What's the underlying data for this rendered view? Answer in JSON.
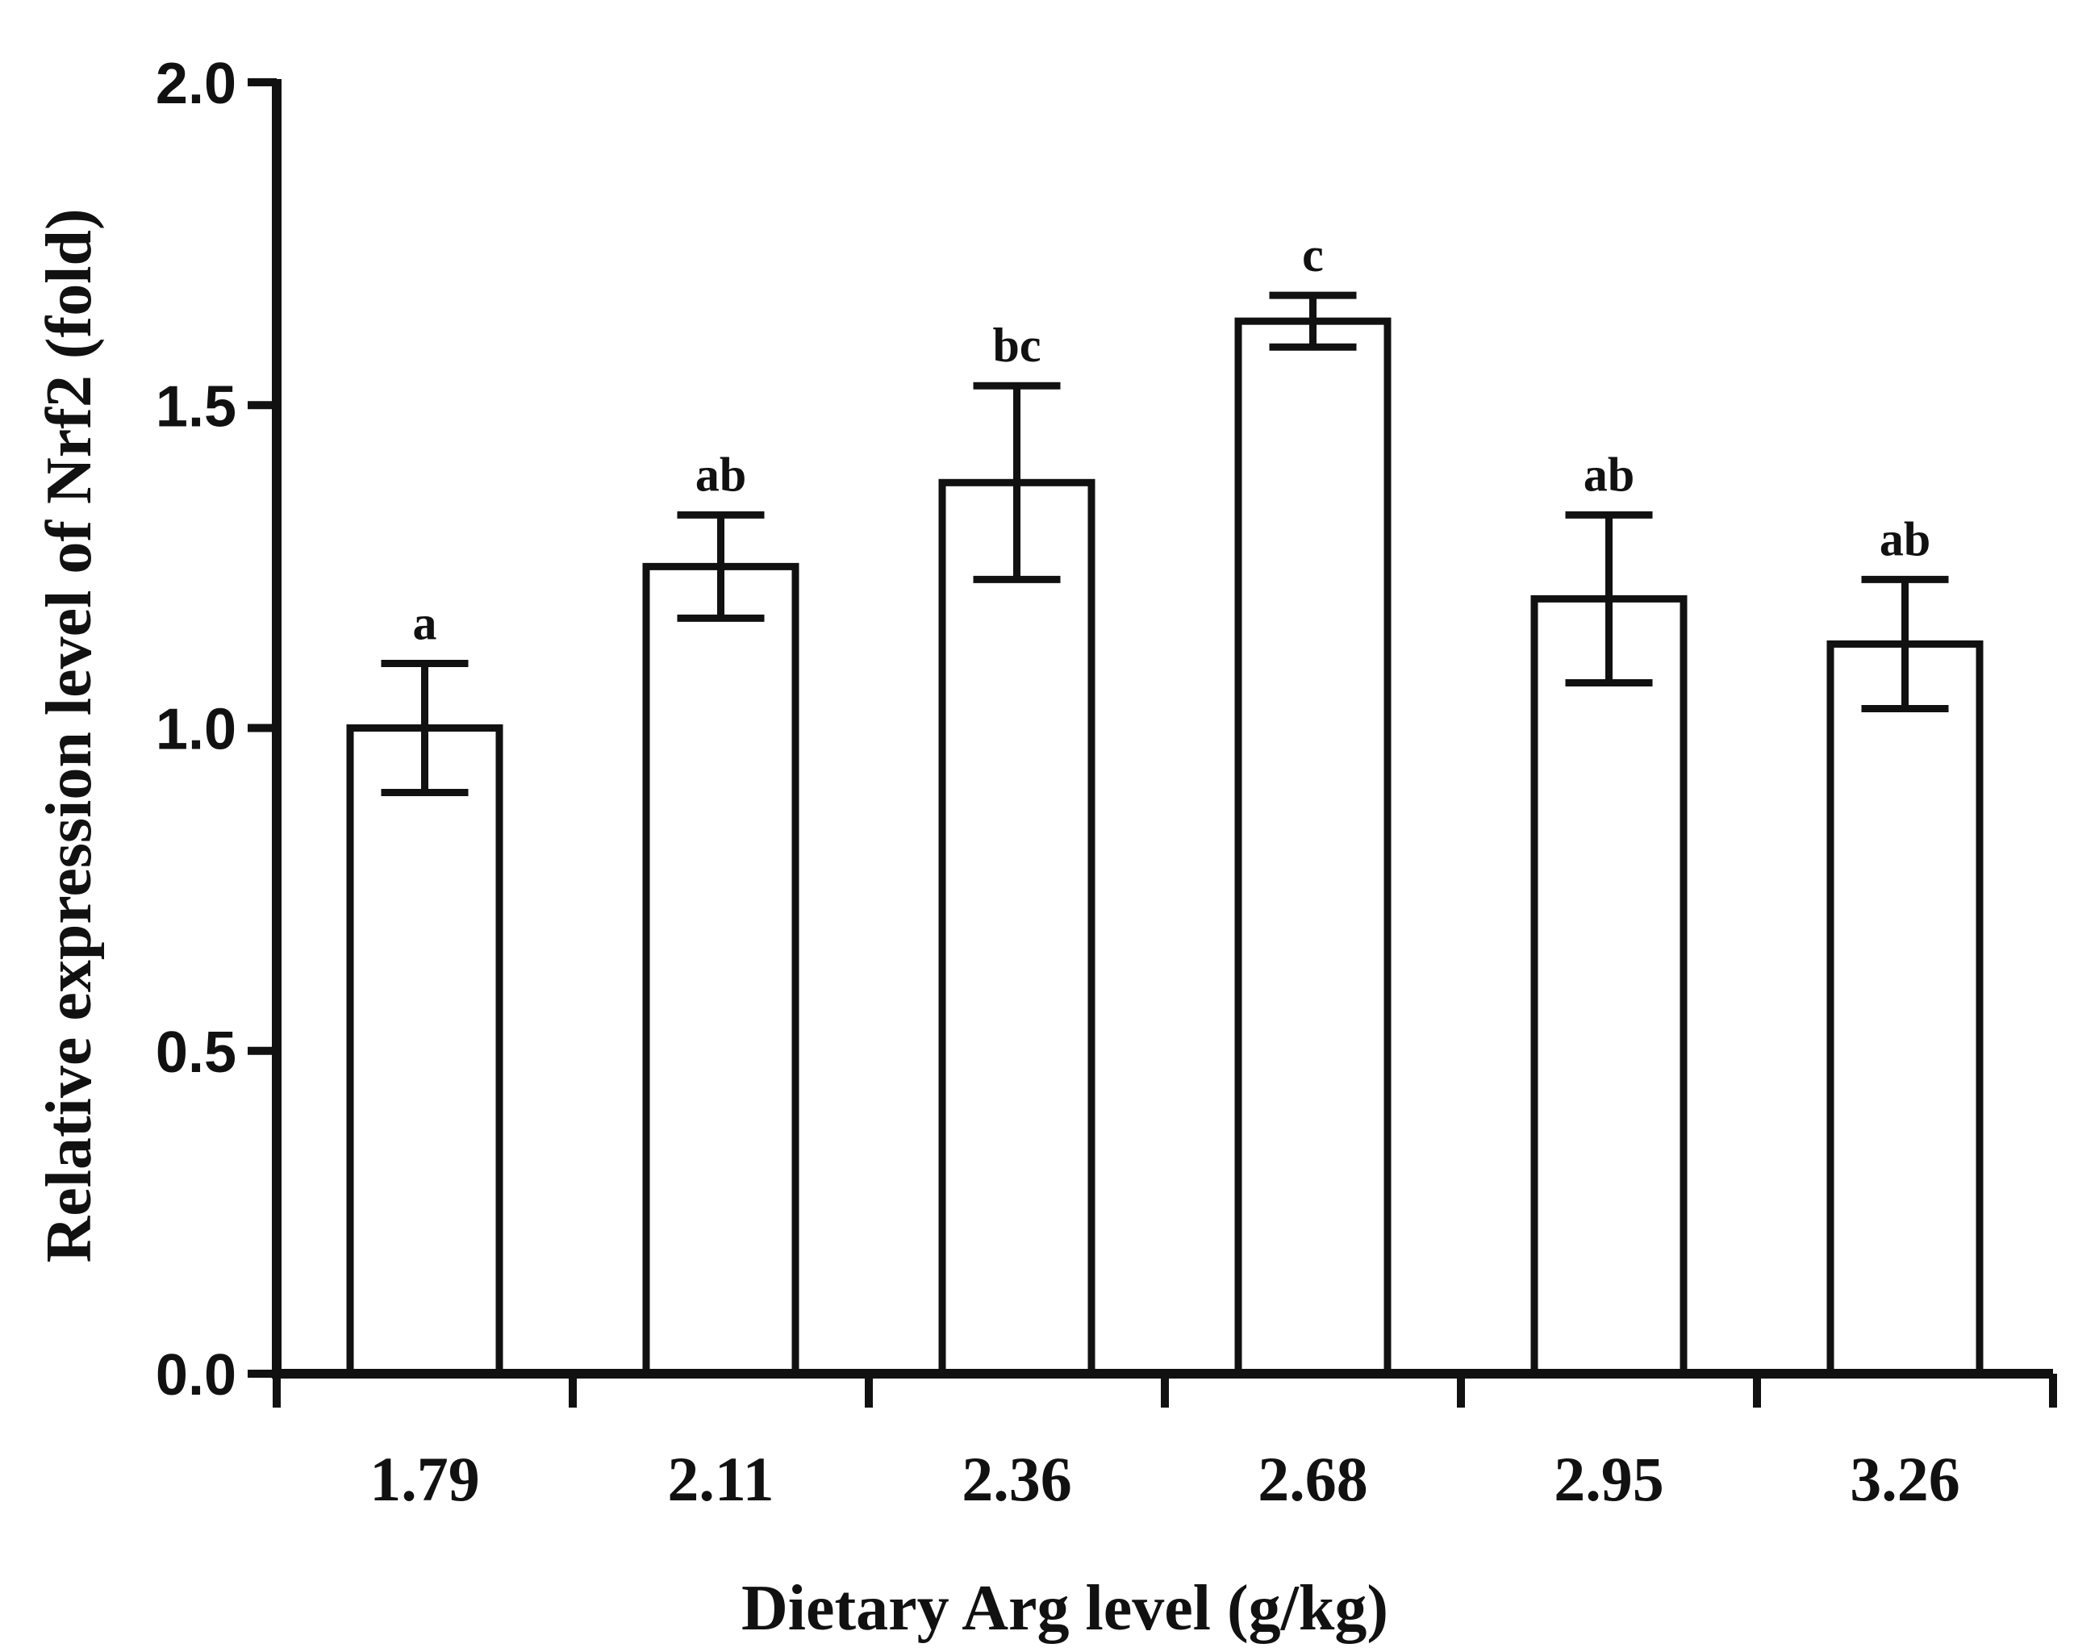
{
  "chart_data": {
    "type": "bar",
    "title": "",
    "xlabel": "Dietary Arg level (g/kg)",
    "ylabel": "Relative expression level of Nrf2 (fold)",
    "ylim": [
      0,
      2.0
    ],
    "yticks": [
      "0.0",
      "0.5",
      "1.0",
      "1.5",
      "2.0"
    ],
    "categories": [
      "1.79",
      "2.11",
      "2.36",
      "2.68",
      "2.95",
      "3.26"
    ],
    "series": [
      {
        "name": "Nrf2",
        "values": [
          1.0,
          1.25,
          1.38,
          1.63,
          1.2,
          1.13
        ],
        "errors": [
          0.1,
          0.08,
          0.15,
          0.04,
          0.13,
          0.1
        ],
        "significance": [
          "a",
          "ab",
          "bc",
          "c",
          "ab",
          "ab"
        ]
      }
    ],
    "grid": false,
    "legend": "none"
  }
}
